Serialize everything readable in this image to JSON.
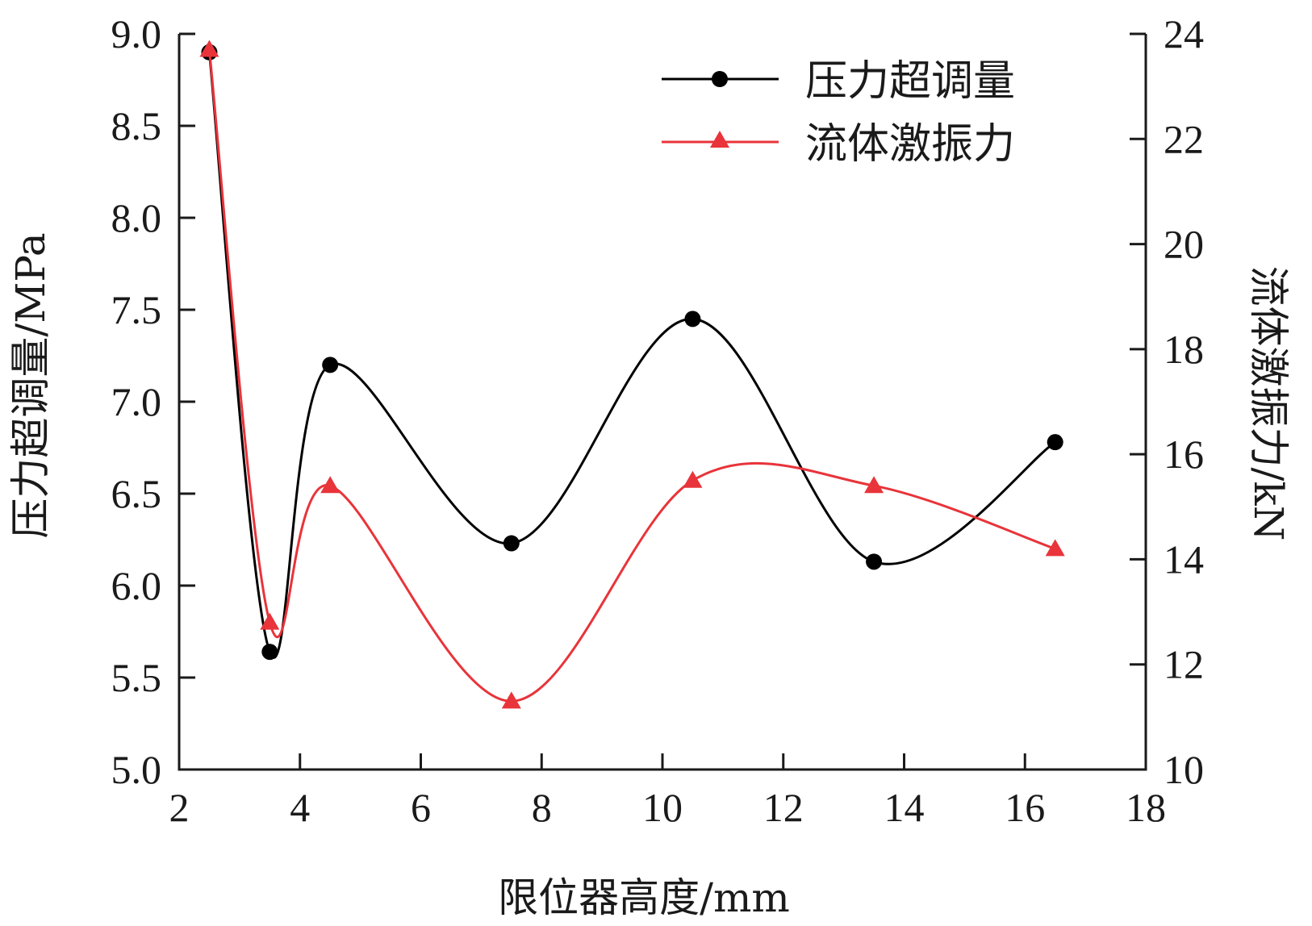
{
  "chart_data": {
    "type": "line",
    "title": "",
    "xlabel": "限位器高度/mm",
    "ylabel": "压力超调量/MPa",
    "y2label": "流体激振力/kN",
    "xlim": [
      2,
      18
    ],
    "ylim": [
      5.0,
      9.0
    ],
    "y2lim": [
      10,
      24
    ],
    "xticks": [
      "2",
      "4",
      "6",
      "8",
      "10",
      "12",
      "14",
      "16",
      "18"
    ],
    "yticks": [
      "5.0",
      "5.5",
      "6.0",
      "6.5",
      "7.0",
      "7.5",
      "8.0",
      "8.5",
      "9.0"
    ],
    "y2ticks": [
      "10",
      "12",
      "14",
      "16",
      "18",
      "20",
      "22",
      "24"
    ],
    "legend_position": "top-right",
    "grid": false,
    "series": [
      {
        "name": "压力超调量",
        "axis": "left",
        "color": "#000000",
        "marker": "circle",
        "x": [
          2.5,
          3.5,
          4.5,
          7.5,
          10.5,
          13.5,
          16.5
        ],
        "values": [
          8.9,
          5.64,
          7.2,
          6.23,
          7.45,
          6.13,
          6.78
        ]
      },
      {
        "name": "流体激振力",
        "axis": "right",
        "color": "#e8343a",
        "marker": "triangle",
        "x": [
          2.5,
          3.5,
          4.5,
          7.5,
          10.5,
          13.5,
          16.5
        ],
        "values": [
          23.7,
          12.8,
          15.4,
          11.3,
          15.5,
          15.4,
          14.2
        ]
      }
    ]
  }
}
